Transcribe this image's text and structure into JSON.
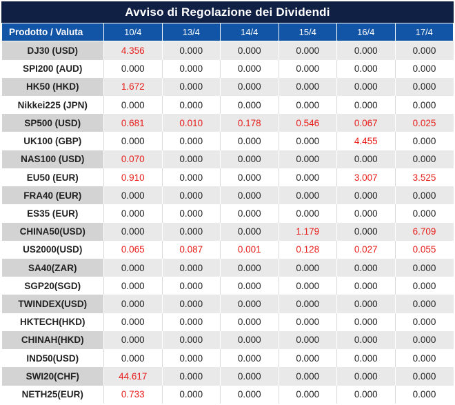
{
  "title": "Avviso di Regolazione dei Dividendi",
  "colors": {
    "title_bar_bg": "#101f44",
    "header_bg": "#1254a5",
    "row_alt_label_bg": "#d3d3d3",
    "row_alt_value_bg": "#e9e9e9",
    "row_white_bg": "#ffffff",
    "gridline": "#d9d9d9",
    "value_text": "#212121",
    "nonzero_value_red": "#e81c18"
  },
  "table": {
    "product_header": "Prodotto / Valuta",
    "date_headers": [
      "10/4",
      "13/4",
      "14/4",
      "15/4",
      "16/4",
      "17/4"
    ],
    "zero_value": "0.000",
    "rows": [
      {
        "product": "DJ30 (USD)",
        "values": [
          "4.356",
          "0.000",
          "0.000",
          "0.000",
          "0.000",
          "0.000"
        ]
      },
      {
        "product": "SPI200 (AUD)",
        "values": [
          "0.000",
          "0.000",
          "0.000",
          "0.000",
          "0.000",
          "0.000"
        ]
      },
      {
        "product": "HK50 (HKD)",
        "values": [
          "1.672",
          "0.000",
          "0.000",
          "0.000",
          "0.000",
          "0.000"
        ]
      },
      {
        "product": "Nikkei225 (JPN)",
        "values": [
          "0.000",
          "0.000",
          "0.000",
          "0.000",
          "0.000",
          "0.000"
        ]
      },
      {
        "product": "SP500 (USD)",
        "values": [
          "0.681",
          "0.010",
          "0.178",
          "0.546",
          "0.067",
          "0.025"
        ]
      },
      {
        "product": "UK100 (GBP)",
        "values": [
          "0.000",
          "0.000",
          "0.000",
          "0.000",
          "4.455",
          "0.000"
        ]
      },
      {
        "product": "NAS100 (USD)",
        "values": [
          "0.070",
          "0.000",
          "0.000",
          "0.000",
          "0.000",
          "0.000"
        ]
      },
      {
        "product": "EU50 (EUR)",
        "values": [
          "0.910",
          "0.000",
          "0.000",
          "0.000",
          "3.007",
          "3.525"
        ]
      },
      {
        "product": "FRA40 (EUR)",
        "values": [
          "0.000",
          "0.000",
          "0.000",
          "0.000",
          "0.000",
          "0.000"
        ]
      },
      {
        "product": "ES35 (EUR)",
        "values": [
          "0.000",
          "0.000",
          "0.000",
          "0.000",
          "0.000",
          "0.000"
        ]
      },
      {
        "product": "CHINA50(USD)",
        "values": [
          "0.000",
          "0.000",
          "0.000",
          "1.179",
          "0.000",
          "6.709"
        ]
      },
      {
        "product": "US2000(USD)",
        "values": [
          "0.065",
          "0.087",
          "0.001",
          "0.128",
          "0.027",
          "0.055"
        ]
      },
      {
        "product": "SA40(ZAR)",
        "values": [
          "0.000",
          "0.000",
          "0.000",
          "0.000",
          "0.000",
          "0.000"
        ]
      },
      {
        "product": "SGP20(SGD)",
        "values": [
          "0.000",
          "0.000",
          "0.000",
          "0.000",
          "0.000",
          "0.000"
        ]
      },
      {
        "product": "TWINDEX(USD)",
        "values": [
          "0.000",
          "0.000",
          "0.000",
          "0.000",
          "0.000",
          "0.000"
        ]
      },
      {
        "product": "HKTECH(HKD)",
        "values": [
          "0.000",
          "0.000",
          "0.000",
          "0.000",
          "0.000",
          "0.000"
        ]
      },
      {
        "product": "CHINAH(HKD)",
        "values": [
          "0.000",
          "0.000",
          "0.000",
          "0.000",
          "0.000",
          "0.000"
        ]
      },
      {
        "product": "IND50(USD)",
        "values": [
          "0.000",
          "0.000",
          "0.000",
          "0.000",
          "0.000",
          "0.000"
        ]
      },
      {
        "product": "SWI20(CHF)",
        "values": [
          "44.617",
          "0.000",
          "0.000",
          "0.000",
          "0.000",
          "0.000"
        ]
      },
      {
        "product": "NETH25(EUR)",
        "values": [
          "0.733",
          "0.000",
          "0.000",
          "0.000",
          "0.000",
          "0.000"
        ]
      }
    ]
  }
}
